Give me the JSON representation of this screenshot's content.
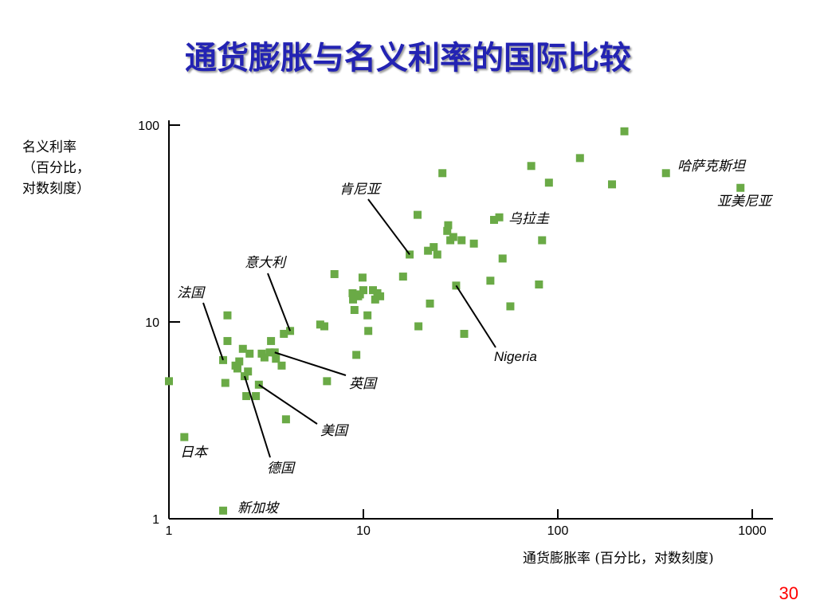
{
  "title": "通货膨胀与名义利率的国际比较",
  "page_number": "30",
  "colors": {
    "title": "#2323b3",
    "point": "#6aaa46",
    "page_number": "#ff0000"
  },
  "chart_data": {
    "type": "scatter",
    "title": "通货膨胀与名义利率的国际比较",
    "xlabel": "通货膨胀率 (百分比，对数刻度)",
    "ylabel_lines": [
      "名义利率",
      "（百分比，",
      "对数刻度）"
    ],
    "x_scale": "log",
    "y_scale": "log",
    "xlim": [
      1,
      1000
    ],
    "ylim": [
      1,
      100
    ],
    "x_ticks": [
      "1",
      "10",
      "100",
      "1000"
    ],
    "y_ticks": [
      "1",
      "10",
      "100"
    ],
    "grid": false,
    "points": [
      [
        1.0,
        5.0
      ],
      [
        1.2,
        2.6
      ],
      [
        1.9,
        1.1
      ],
      [
        1.9,
        6.4
      ],
      [
        1.95,
        4.9
      ],
      [
        2.0,
        10.8
      ],
      [
        2.0,
        8.0
      ],
      [
        2.2,
        6.0
      ],
      [
        2.25,
        5.8
      ],
      [
        2.3,
        6.3
      ],
      [
        2.4,
        7.3
      ],
      [
        2.45,
        5.3
      ],
      [
        2.5,
        4.2
      ],
      [
        2.55,
        5.6
      ],
      [
        2.6,
        6.9
      ],
      [
        2.8,
        4.2
      ],
      [
        2.9,
        4.8
      ],
      [
        3.0,
        6.9
      ],
      [
        3.1,
        6.6
      ],
      [
        3.3,
        7.0
      ],
      [
        3.35,
        8.0
      ],
      [
        3.5,
        7.0
      ],
      [
        3.55,
        6.5
      ],
      [
        3.8,
        6.0
      ],
      [
        3.9,
        8.7
      ],
      [
        4.0,
        3.2
      ],
      [
        4.2,
        9.0
      ],
      [
        6.0,
        9.7
      ],
      [
        6.3,
        9.5
      ],
      [
        6.5,
        5.0
      ],
      [
        7.1,
        17.5
      ],
      [
        8.8,
        14.0
      ],
      [
        8.85,
        13.0
      ],
      [
        9.0,
        11.5
      ],
      [
        9.2,
        6.8
      ],
      [
        9.4,
        13.5
      ],
      [
        9.6,
        13.8
      ],
      [
        9.9,
        16.8
      ],
      [
        10.0,
        14.5
      ],
      [
        10.5,
        10.8
      ],
      [
        10.6,
        9.0
      ],
      [
        11.2,
        14.5
      ],
      [
        11.5,
        13.0
      ],
      [
        11.8,
        14.0
      ],
      [
        12.2,
        13.5
      ],
      [
        16.0,
        17.0
      ],
      [
        17.3,
        22.0
      ],
      [
        19.0,
        35.0
      ],
      [
        19.2,
        9.5
      ],
      [
        21.5,
        23.0
      ],
      [
        22.0,
        12.4
      ],
      [
        23.0,
        24.0
      ],
      [
        24.0,
        22.0
      ],
      [
        25.5,
        57.0
      ],
      [
        27.0,
        29.0
      ],
      [
        27.3,
        31.0
      ],
      [
        28.0,
        26.0
      ],
      [
        29.0,
        27.0
      ],
      [
        30.0,
        15.3
      ],
      [
        32.0,
        26.0
      ],
      [
        33.0,
        8.7
      ],
      [
        37.0,
        25.0
      ],
      [
        45.0,
        16.2
      ],
      [
        47.0,
        33.0
      ],
      [
        50.0,
        34.0
      ],
      [
        52.0,
        21.0
      ],
      [
        57.0,
        12.0
      ],
      [
        73.0,
        62.0
      ],
      [
        80.0,
        15.5
      ],
      [
        83.0,
        26.0
      ],
      [
        90.0,
        51.0
      ],
      [
        130.0,
        68.0
      ],
      [
        190.0,
        50.0
      ],
      [
        220.0,
        93.0
      ],
      [
        360.0,
        57.0
      ],
      [
        870.0,
        48.0
      ]
    ],
    "annotations": [
      {
        "label": "肯尼亚",
        "point": [
          17.3,
          22.0
        ]
      },
      {
        "label": "乌拉圭",
        "point": [
          47.0,
          33.0
        ]
      },
      {
        "label": "哈萨克斯坦",
        "point": [
          360.0,
          57.0
        ]
      },
      {
        "label": "亚美尼亚",
        "point": [
          870.0,
          48.0
        ]
      },
      {
        "label": "意大利",
        "point": [
          4.2,
          9.0
        ]
      },
      {
        "label": "法国",
        "point": [
          1.9,
          6.4
        ]
      },
      {
        "label": "Nigeria",
        "point": [
          30.0,
          15.3
        ]
      },
      {
        "label": "英国",
        "point": [
          3.5,
          7.0
        ]
      },
      {
        "label": "美国",
        "point": [
          2.9,
          4.8
        ]
      },
      {
        "label": "德国",
        "point": [
          2.45,
          5.3
        ]
      },
      {
        "label": "日本",
        "point": [
          1.2,
          2.6
        ]
      },
      {
        "label": "新加坡",
        "point": [
          1.9,
          1.1
        ]
      }
    ]
  }
}
